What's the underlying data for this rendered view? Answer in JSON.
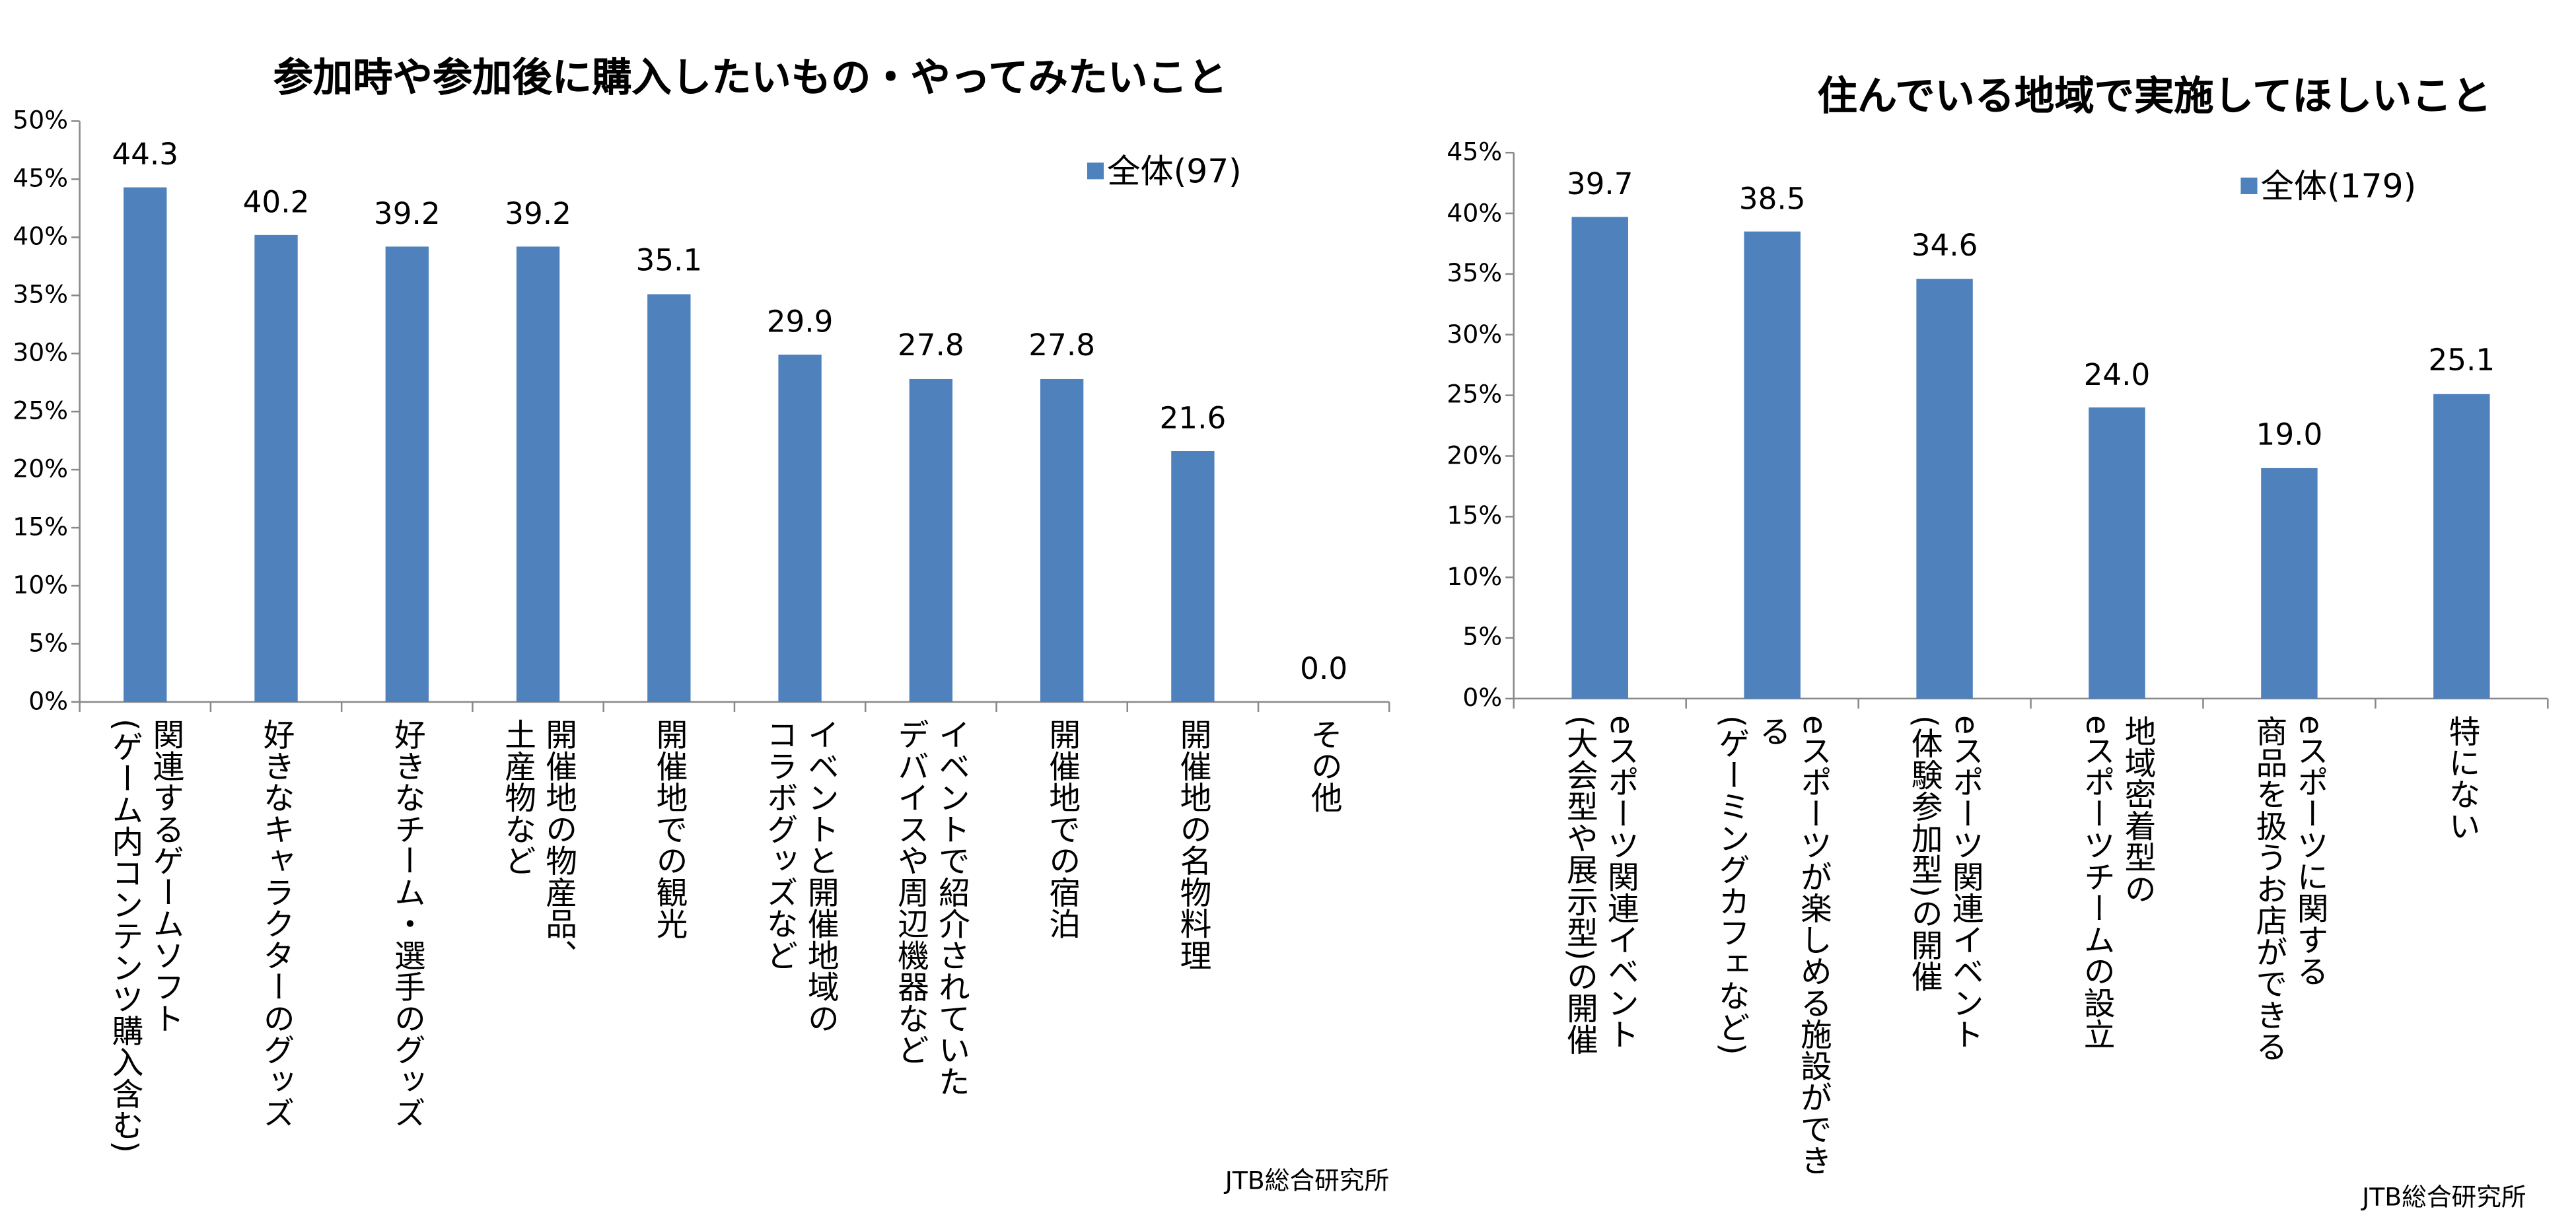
{
  "chart_data": [
    {
      "type": "bar",
      "title": "参加時や参加後に購入したいもの・やってみたいこと",
      "categories": [
        "関連するゲームソフト\n(ゲーム内コンテンツ購入含む)",
        "好きなキャラクターのグッズ",
        "好きなチーム・選手のグッズ",
        "開催地の物産品、\n土産物など",
        "開催地での観光",
        "イベントと開催地域の\nコラボグッズなど",
        "イベントで紹介されていた\nデバイスや周辺機器など",
        "開催地での宿泊",
        "開催地の名物料理",
        "その他"
      ],
      "series": [
        {
          "name": "全体(97)",
          "color": "#4f81bd",
          "values": [
            44.3,
            40.2,
            39.2,
            39.2,
            35.1,
            29.9,
            27.8,
            27.8,
            21.6,
            0
          ],
          "value_labels": [
            "44.3",
            "40.2",
            "39.2",
            "39.2",
            "35.1",
            "29.9",
            "27.8",
            "27.8",
            "21.6",
            "0.0"
          ]
        }
      ],
      "ylim": [
        0,
        50
      ],
      "yticks": [
        {
          "value": 0,
          "label": "0%"
        },
        {
          "value": 5,
          "label": "5%"
        },
        {
          "value": 10,
          "label": "10%"
        },
        {
          "value": 15,
          "label": "15%"
        },
        {
          "value": 20,
          "label": "20%"
        },
        {
          "value": 25,
          "label": "25%"
        },
        {
          "value": 30,
          "label": "30%"
        },
        {
          "value": 35,
          "label": "35%"
        },
        {
          "value": 40,
          "label": "40%"
        },
        {
          "value": 45,
          "label": "45%"
        },
        {
          "value": 50,
          "label": "50%"
        }
      ],
      "grid": false,
      "legend": "top-right",
      "source": "JTB総合研究所"
    },
    {
      "type": "bar",
      "title": "住んでいる地域で実施してほしいこと",
      "categories": [
        "eスポーツ関連イベント\n(大会型や展示型)の開催",
        "eスポーツが楽しめる施設ができる\n(ゲーミングカフェなど)",
        "eスポーツ関連イベント\n(体験参加型)の開催",
        "地域密着型の\neスポーツチームの設立",
        "eスポーツに関する\n商品を扱うお店ができる",
        "特にない"
      ],
      "series": [
        {
          "name": "全体(179)",
          "color": "#4f81bd",
          "values": [
            39.7,
            38.5,
            34.6,
            24.0,
            19.0,
            25.1
          ],
          "value_labels": [
            "39.7",
            "38.5",
            "34.6",
            "24.0",
            "19.0",
            "25.1"
          ]
        }
      ],
      "ylim": [
        0,
        45
      ],
      "yticks": [
        {
          "value": 0,
          "label": "0%"
        },
        {
          "value": 5,
          "label": "5%"
        },
        {
          "value": 10,
          "label": "10%"
        },
        {
          "value": 15,
          "label": "15%"
        },
        {
          "value": 20,
          "label": "20%"
        },
        {
          "value": 25,
          "label": "25%"
        },
        {
          "value": 30,
          "label": "30%"
        },
        {
          "value": 35,
          "label": "35%"
        },
        {
          "value": 40,
          "label": "40%"
        },
        {
          "value": 45,
          "label": "45%"
        }
      ],
      "grid": false,
      "legend": "top-right",
      "source": "JTB総合研究所"
    }
  ]
}
